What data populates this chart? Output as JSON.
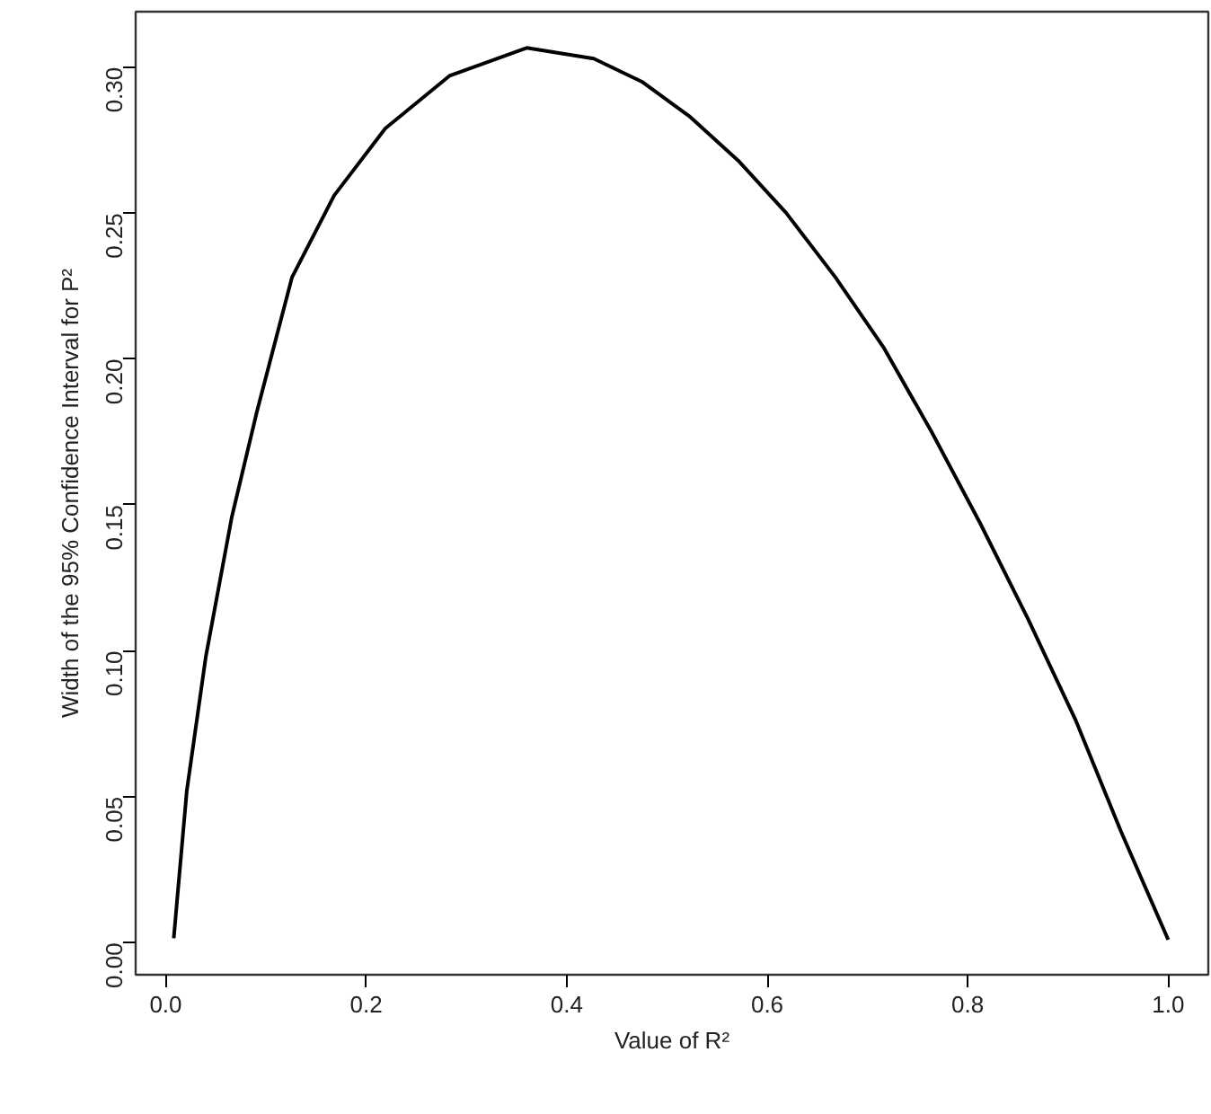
{
  "chart_data": {
    "type": "line",
    "xlabel": "Value of R²",
    "ylabel": "Width of the 95% Confidence Interval for P²",
    "xlim": [
      -0.03,
      1.04
    ],
    "ylim": [
      -0.011,
      0.319
    ],
    "xticks": [
      {
        "value": 0,
        "label": "0.0"
      },
      {
        "value": 0.2,
        "label": "0.2"
      },
      {
        "value": 0.4,
        "label": "0.4"
      },
      {
        "value": 0.6,
        "label": "0.6"
      },
      {
        "value": 0.8,
        "label": "0.8"
      },
      {
        "value": 1,
        "label": "1.0"
      }
    ],
    "yticks": [
      {
        "value": 0,
        "label": "0.00"
      },
      {
        "value": 0.05,
        "label": "0.05"
      },
      {
        "value": 0.1,
        "label": "0.10"
      },
      {
        "value": 0.15,
        "label": "0.15"
      },
      {
        "value": 0.2,
        "label": "0.20"
      },
      {
        "value": 0.25,
        "label": "0.25"
      },
      {
        "value": 0.3,
        "label": "0.30"
      }
    ],
    "grid": false,
    "line_style": "solid",
    "series": [
      {
        "color": "#000000",
        "x": [
          0.008,
          0.021,
          0.04,
          0.066,
          0.091,
          0.126,
          0.168,
          0.219,
          0.283,
          0.36,
          0.427,
          0.475,
          0.523,
          0.571,
          0.619,
          0.668,
          0.716,
          0.764,
          0.812,
          0.86,
          0.908,
          0.953,
          1.0
        ],
        "values": [
          0.0015,
          0.052,
          0.098,
          0.146,
          0.182,
          0.228,
          0.256,
          0.279,
          0.297,
          0.3066,
          0.3029,
          0.295,
          0.283,
          0.268,
          0.25,
          0.228,
          0.204,
          0.175,
          0.144,
          0.111,
          0.076,
          0.038,
          0.001
        ]
      }
    ]
  }
}
